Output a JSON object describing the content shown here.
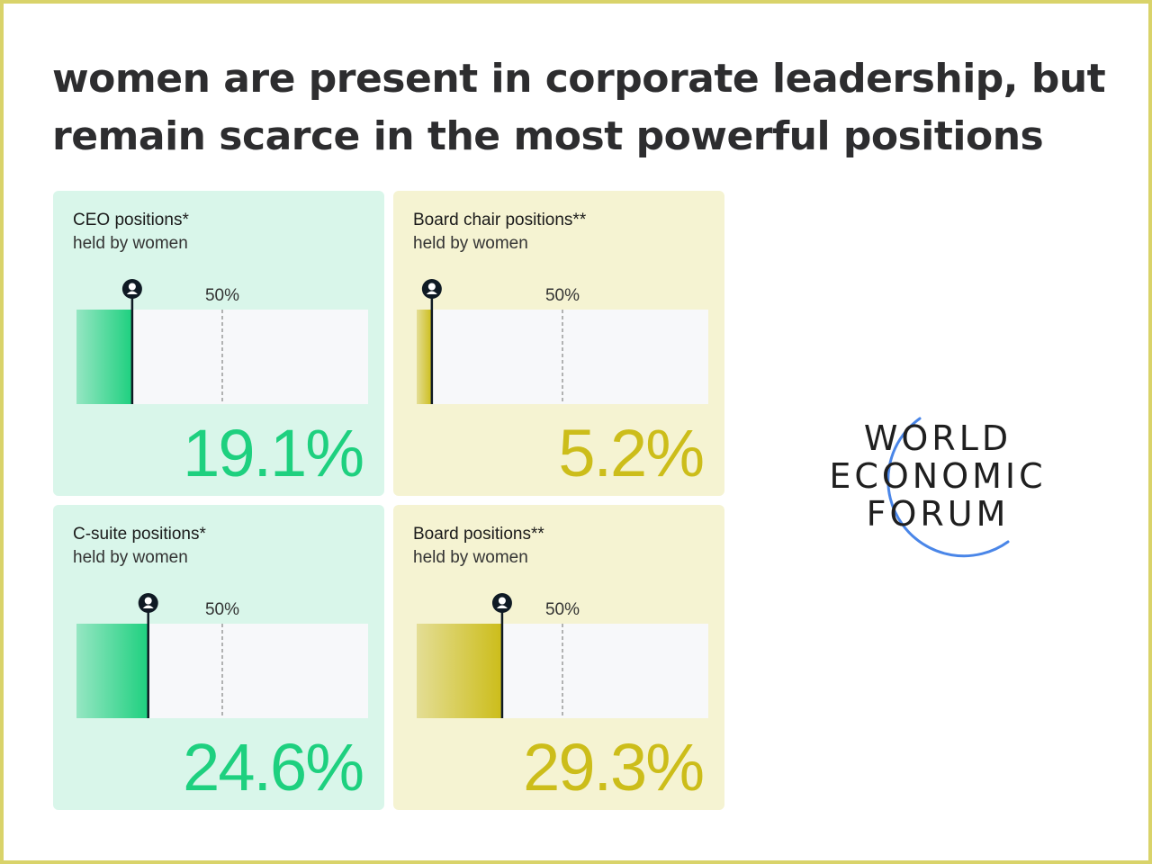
{
  "title": {
    "line1": "women are present in corporate leadership, but",
    "line2": "remain scarce in the most powerful positions"
  },
  "colors": {
    "green_accent": "#1ed07f",
    "green_card_bg": "#d9f6ea",
    "yellow_accent": "#ccbd1a",
    "yellow_card_bg": "#f5f3d2",
    "track": "#f7f8fa",
    "marker": "#0f1a24",
    "logo_arc": "#4a86e8"
  },
  "logo": {
    "line1": "WORLD",
    "line2": "ECONOMIC",
    "line3": "FORUM"
  },
  "chart_data": [
    {
      "type": "bar",
      "title": "CEO positions*",
      "subtitle": "held by women",
      "value": 19.1,
      "value_label": "19.1%",
      "reference": 50,
      "reference_label": "50%",
      "xlim": [
        0,
        100
      ],
      "color": "green"
    },
    {
      "type": "bar",
      "title": "Board chair positions**",
      "subtitle": "held by women",
      "value": 5.2,
      "value_label": "5.2%",
      "reference": 50,
      "reference_label": "50%",
      "xlim": [
        0,
        100
      ],
      "color": "yellow"
    },
    {
      "type": "bar",
      "title": "C-suite positions*",
      "subtitle": "held by women",
      "value": 24.6,
      "value_label": "24.6%",
      "reference": 50,
      "reference_label": "50%",
      "xlim": [
        0,
        100
      ],
      "color": "green"
    },
    {
      "type": "bar",
      "title": "Board positions**",
      "subtitle": "held by women",
      "value": 29.3,
      "value_label": "29.3%",
      "reference": 50,
      "reference_label": "50%",
      "xlim": [
        0,
        100
      ],
      "color": "yellow"
    }
  ]
}
